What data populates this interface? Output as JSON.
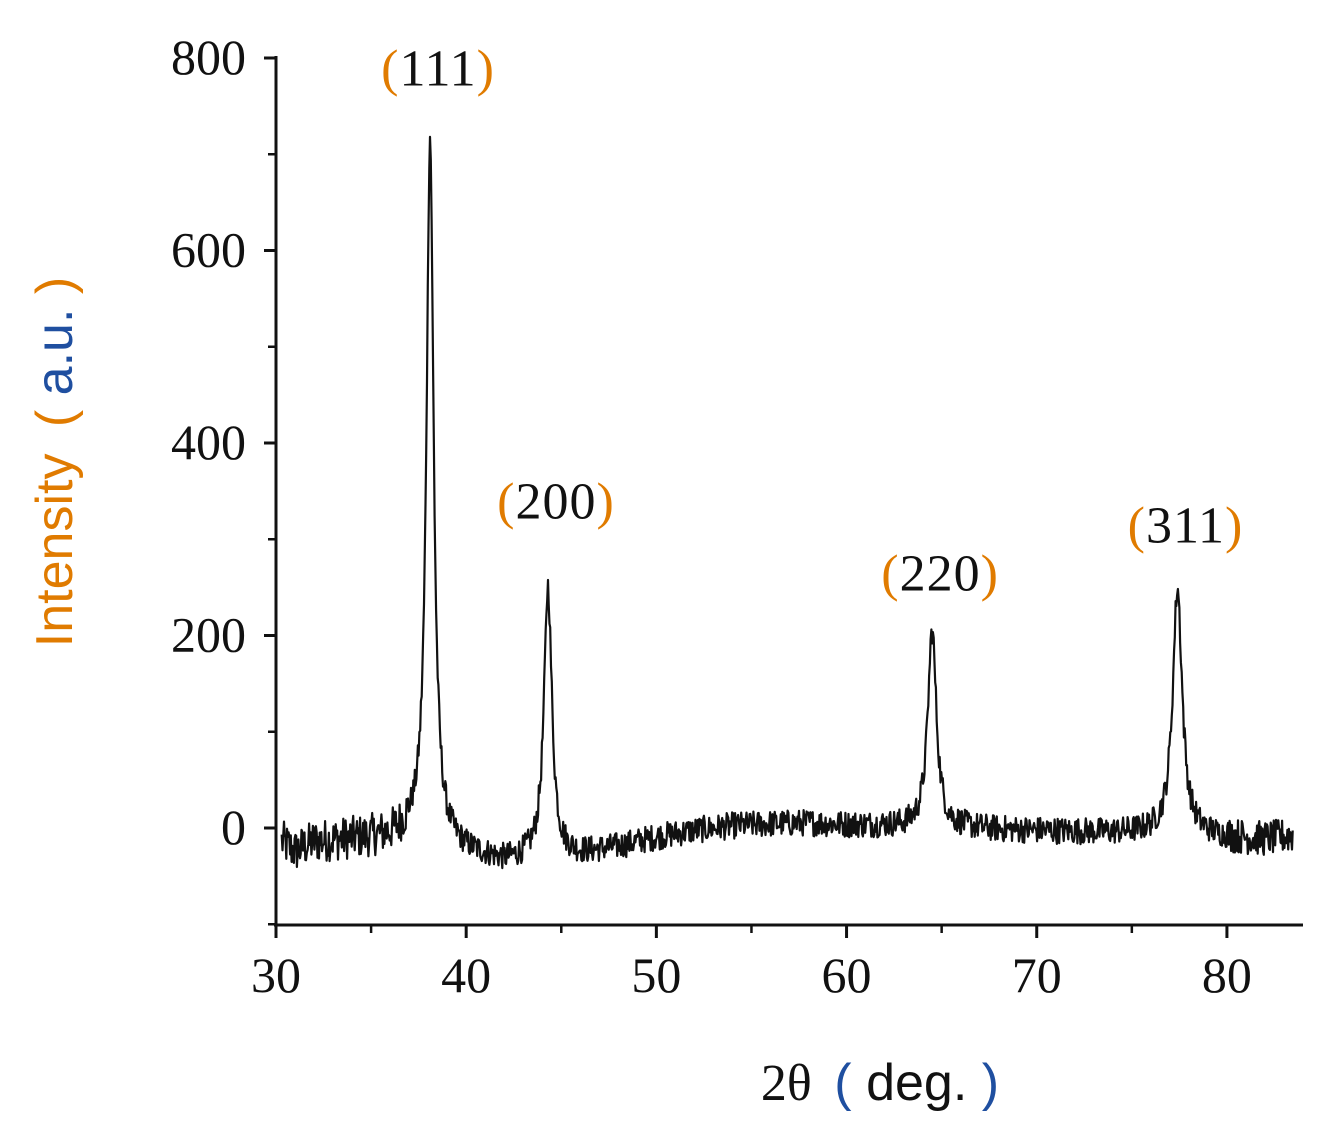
{
  "chart_data": {
    "type": "line",
    "title": "",
    "xlabel": {
      "prefix": "2θ",
      "paren_open": "(",
      "unit": "deg.",
      "paren_close": ")"
    },
    "ylabel": {
      "word": "Intensity",
      "paren_open": "(",
      "unit": "a.u.",
      "paren_close": ")"
    },
    "xlim": [
      30,
      84
    ],
    "ylim": [
      -100,
      800
    ],
    "x_ticks": [
      30,
      40,
      50,
      60,
      70,
      80
    ],
    "x_tick_labels": [
      "30",
      "40",
      "50",
      "60",
      "70",
      "80"
    ],
    "x_minor_ticks": [
      35,
      45,
      55,
      65,
      75
    ],
    "y_ticks": [
      0,
      200,
      400,
      600,
      800
    ],
    "y_tick_labels": [
      "0",
      "200",
      "400",
      "600",
      "800"
    ],
    "grid": false,
    "legend": "none",
    "baseline": [
      [
        30,
        -10
      ],
      [
        31,
        -25
      ],
      [
        32,
        -15
      ],
      [
        34,
        -12
      ],
      [
        36,
        -10
      ],
      [
        37,
        -5
      ],
      [
        40,
        -25
      ],
      [
        42,
        -35
      ],
      [
        44,
        -30
      ],
      [
        46,
        -28
      ],
      [
        48,
        -20
      ],
      [
        50,
        -10
      ],
      [
        52,
        -3
      ],
      [
        54,
        2
      ],
      [
        56,
        4
      ],
      [
        58,
        5
      ],
      [
        60,
        3
      ],
      [
        62,
        2
      ],
      [
        64,
        0
      ],
      [
        66,
        0
      ],
      [
        68,
        -2
      ],
      [
        70,
        -3
      ],
      [
        72,
        -4
      ],
      [
        74,
        -5
      ],
      [
        76,
        -5
      ],
      [
        78,
        -6
      ],
      [
        80,
        -10
      ],
      [
        82,
        -12
      ],
      [
        83.5,
        -8
      ]
    ],
    "peaks": [
      {
        "label": "111",
        "position": 38.1,
        "intensity": 730,
        "fwhm": 0.45
      },
      {
        "label": "200",
        "position": 44.3,
        "intensity": 280,
        "fwhm": 0.5
      },
      {
        "label": "220",
        "position": 64.5,
        "intensity": 205,
        "fwhm": 0.55
      },
      {
        "label": "311",
        "position": 77.4,
        "intensity": 255,
        "fwhm": 0.6
      }
    ],
    "noise_amplitude": 14,
    "line_color": "#111111",
    "label_paren_color": "#e07b00",
    "ylabel_color_word": "#e07b00",
    "ylabel_color_unit": "#1f4fa0",
    "xlabel_color_unit": "#1f4fa0",
    "text_color": "#111111"
  }
}
